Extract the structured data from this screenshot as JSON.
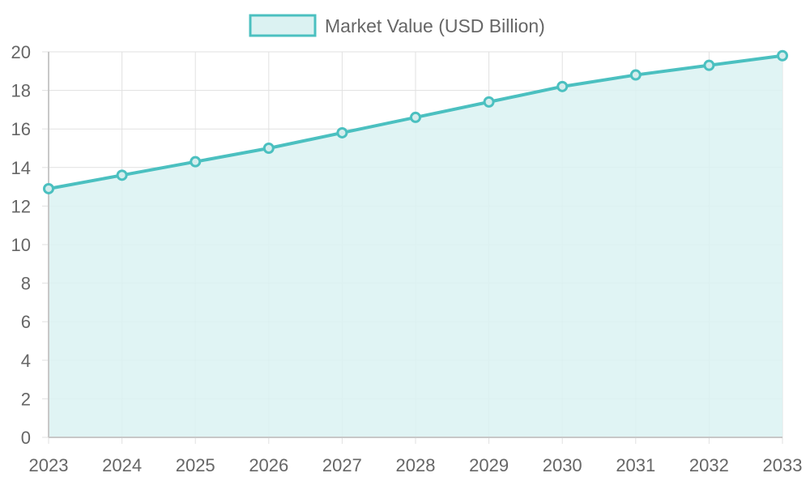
{
  "chart_data": {
    "type": "area",
    "title": "",
    "xlabel": "",
    "ylabel": "",
    "x": [
      2023,
      2024,
      2025,
      2026,
      2027,
      2028,
      2029,
      2030,
      2031,
      2032,
      2033
    ],
    "series": [
      {
        "name": "Market Value (USD Billion)",
        "values": [
          12.9,
          13.6,
          14.3,
          15.0,
          15.8,
          16.6,
          17.4,
          18.2,
          18.8,
          19.3,
          19.8
        ]
      }
    ],
    "ylim": [
      0,
      20
    ],
    "yticks": [
      0,
      2,
      4,
      6,
      8,
      10,
      12,
      14,
      16,
      18,
      20
    ],
    "grid": true,
    "legend": "top-center",
    "colors": {
      "line": "#4bc0c0",
      "fill": "#dbf2f2",
      "point_fill": "#d5eded"
    }
  }
}
